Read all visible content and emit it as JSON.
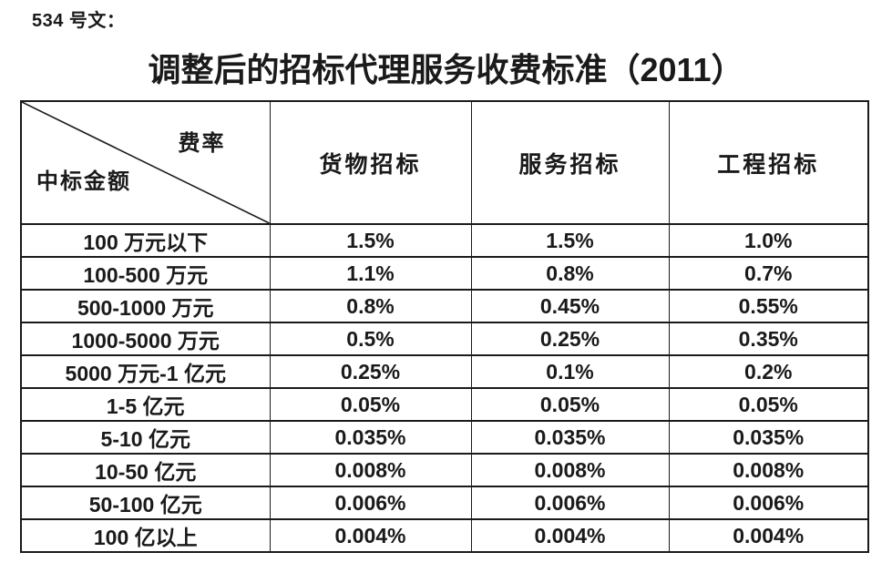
{
  "page": {
    "doc_label": "534 号文：",
    "title": "调整后的招标代理服务收费标准（2011）"
  },
  "table": {
    "corner": {
      "fee_rate_label": "费率",
      "bid_amount_label": "中标金额"
    },
    "columns": [
      "货物招标",
      "服务招标",
      "工程招标"
    ],
    "rows": [
      {
        "amount": "100 万元以下",
        "values": [
          "1.5%",
          "1.5%",
          "1.0%"
        ]
      },
      {
        "amount": "100-500 万元",
        "values": [
          "1.1%",
          "0.8%",
          "0.7%"
        ]
      },
      {
        "amount": "500-1000 万元",
        "values": [
          "0.8%",
          "0.45%",
          "0.55%"
        ]
      },
      {
        "amount": "1000-5000 万元",
        "values": [
          "0.5%",
          "0.25%",
          "0.35%"
        ]
      },
      {
        "amount": "5000 万元-1 亿元",
        "values": [
          "0.25%",
          "0.1%",
          "0.2%"
        ]
      },
      {
        "amount": "1-5 亿元",
        "values": [
          "0.05%",
          "0.05%",
          "0.05%"
        ]
      },
      {
        "amount": "5-10 亿元",
        "values": [
          "0.035%",
          "0.035%",
          "0.035%"
        ]
      },
      {
        "amount": "10-50 亿元",
        "values": [
          "0.008%",
          "0.008%",
          "0.008%"
        ]
      },
      {
        "amount": "50-100 亿元",
        "values": [
          "0.006%",
          "0.006%",
          "0.006%"
        ]
      },
      {
        "amount": "100 亿以上",
        "values": [
          "0.004%",
          "0.004%",
          "0.004%"
        ]
      }
    ]
  },
  "colors": {
    "text": "#1a1a1a",
    "border": "#1a1a1a",
    "background": "#ffffff"
  }
}
